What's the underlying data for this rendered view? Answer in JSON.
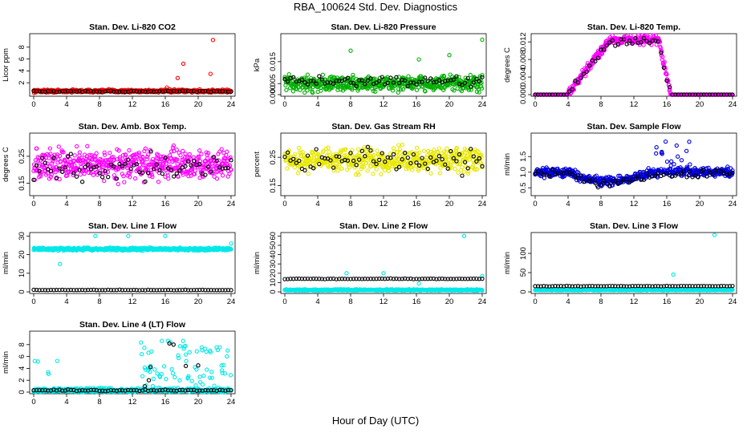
{
  "figure": {
    "title": "RBA_100624  Std. Dev. Diagnostics",
    "xlabel": "Hour of Day (UTC)"
  },
  "chart_data": [
    {
      "type": "scatter",
      "title": "Stan. Dev. Li-820 CO2",
      "ylabel": "Licor ppm",
      "xlim": [
        0,
        24
      ],
      "ylim": [
        0,
        10
      ],
      "x_ticks": [
        "0",
        "4",
        "8",
        "12",
        "16",
        "20",
        "24"
      ],
      "y_ticks": [
        "2",
        "4",
        "6",
        "8"
      ],
      "y_tick_values": [
        2,
        4,
        6,
        8
      ],
      "series": [
        {
          "color": "#ff0000",
          "baseline": 0.6,
          "spread": 0.2,
          "outliers": [
            [
              16.2,
              1.2
            ],
            [
              17.5,
              2.8
            ],
            [
              18.2,
              5.2
            ],
            [
              21.5,
              3.5
            ],
            [
              21.8,
              9.2
            ]
          ]
        },
        {
          "color": "#000000",
          "baseline": 0.55,
          "spread": 0.1,
          "sparse": true
        }
      ]
    },
    {
      "type": "scatter",
      "title": "Stan. Dev. Li-820 Pressure",
      "ylabel": "kPa",
      "xlim": [
        0,
        24
      ],
      "ylim": [
        0,
        0.027
      ],
      "x_ticks": [
        "0",
        "4",
        "8",
        "12",
        "16",
        "20",
        "24"
      ],
      "y_ticks": [
        "0.000",
        "0.005",
        "0.015"
      ],
      "y_tick_values": [
        0,
        0.005,
        0.015
      ],
      "series": [
        {
          "color": "#00b000",
          "baseline": 0.005,
          "spread": 0.003,
          "outliers": [
            [
              8,
              0.02
            ],
            [
              16.3,
              0.016
            ],
            [
              20,
              0.018
            ],
            [
              24,
              0.025
            ]
          ]
        },
        {
          "color": "#000000",
          "baseline": 0.006,
          "spread": 0.002,
          "sparse": true
        }
      ]
    },
    {
      "type": "scatter",
      "title": "Stan. Dev. Li-820 Temp.",
      "ylabel": "degrees C",
      "xlim": [
        0,
        24
      ],
      "ylim": [
        0,
        0.0135
      ],
      "x_ticks": [
        "0",
        "4",
        "8",
        "12",
        "16",
        "20",
        "24"
      ],
      "y_ticks": [
        "0.000",
        "0.004",
        "0.008",
        "0.012"
      ],
      "y_tick_values": [
        0,
        0.004,
        0.008,
        0.012
      ],
      "series": [
        {
          "color": "#ff00ff",
          "profile": "daytime-hump",
          "peak": 0.0125
        },
        {
          "color": "#000000",
          "profile": "daytime-hump",
          "peak": 0.012,
          "sparse": true
        }
      ]
    },
    {
      "type": "scatter",
      "title": "Stan. Dev. Amb. Box Temp.",
      "ylabel": "degrees C",
      "xlim": [
        0,
        24
      ],
      "ylim": [
        0.11,
        0.33
      ],
      "x_ticks": [
        "0",
        "4",
        "8",
        "12",
        "16",
        "20",
        "24"
      ],
      "y_ticks": [
        "0.15",
        "0.25"
      ],
      "y_tick_values": [
        0.15,
        0.25
      ],
      "series": [
        {
          "color": "#ff00ff",
          "baseline": 0.22,
          "spread": 0.045
        },
        {
          "color": "#000000",
          "baseline": 0.21,
          "spread": 0.04,
          "sparse": true
        }
      ]
    },
    {
      "type": "scatter",
      "title": "Stan. Dev. Gas Stream RH",
      "ylabel": "percent",
      "xlim": [
        0,
        24
      ],
      "ylim": [
        0.12,
        0.33
      ],
      "x_ticks": [
        "0",
        "4",
        "8",
        "12",
        "16",
        "20",
        "24"
      ],
      "y_ticks": [
        "0.15",
        "0.25"
      ],
      "y_tick_values": [
        0.15,
        0.25
      ],
      "series": [
        {
          "color": "#e8e800",
          "baseline": 0.24,
          "spread": 0.035
        },
        {
          "color": "#000000",
          "baseline": 0.24,
          "spread": 0.035,
          "sparse": true
        }
      ]
    },
    {
      "type": "scatter",
      "title": "Stan. Dev. Sample Flow",
      "ylabel": "ml/min",
      "xlim": [
        0,
        24
      ],
      "ylim": [
        0.3,
        2.2
      ],
      "x_ticks": [
        "0",
        "4",
        "8",
        "12",
        "16",
        "20",
        "24"
      ],
      "y_ticks": [
        "0.5",
        "1.0",
        "1.5"
      ],
      "y_tick_values": [
        0.5,
        1.0,
        1.5
      ],
      "series": [
        {
          "color": "#0000e0",
          "profile": "dip-midday",
          "baseline": 1.0
        },
        {
          "color": "#000000",
          "profile": "dip-midday",
          "baseline": 0.95,
          "sparse": true
        }
      ]
    },
    {
      "type": "scatter",
      "title": "Stan. Dev. Line 1 Flow",
      "ylabel": "ml/min",
      "xlim": [
        0,
        24
      ],
      "ylim": [
        0,
        31
      ],
      "x_ticks": [
        "0",
        "4",
        "8",
        "12",
        "16",
        "20",
        "24"
      ],
      "y_ticks": [
        "0",
        "10",
        "20",
        "30"
      ],
      "y_tick_values": [
        0,
        10,
        20,
        30
      ],
      "series": [
        {
          "color": "#00e8e8",
          "baseline": 23,
          "spread": 0.6,
          "outliers": [
            [
              3.2,
              15
            ],
            [
              7.5,
              30
            ],
            [
              11.5,
              30
            ],
            [
              16,
              30
            ],
            [
              24,
              26
            ]
          ]
        },
        {
          "color": "#000000",
          "baseline": 1,
          "spread": 0.1,
          "sparse": true
        }
      ]
    },
    {
      "type": "scatter",
      "title": "Stan. Dev. Line 2 Flow",
      "ylabel": "ml/min",
      "xlim": [
        0,
        24
      ],
      "ylim": [
        0,
        62
      ],
      "x_ticks": [
        "0",
        "4",
        "8",
        "12",
        "16",
        "20",
        "24"
      ],
      "y_ticks": [
        "0",
        "10",
        "20",
        "30",
        "40",
        "50",
        "60"
      ],
      "y_tick_values": [
        0,
        10,
        20,
        30,
        40,
        50,
        60
      ],
      "series": [
        {
          "color": "#00e8e8",
          "baseline": 2,
          "spread": 0.6,
          "outliers": [
            [
              7.5,
              20
            ],
            [
              12,
              20
            ],
            [
              16.3,
              9
            ],
            [
              21.8,
              60
            ],
            [
              24,
              17
            ]
          ]
        },
        {
          "color": "#000000",
          "baseline": 14,
          "spread": 0.3,
          "sparse": true
        }
      ]
    },
    {
      "type": "scatter",
      "title": "Stan. Dev. Line 3 Flow",
      "ylabel": "ml/min",
      "xlim": [
        0,
        24
      ],
      "ylim": [
        0,
        150
      ],
      "x_ticks": [
        "0",
        "4",
        "8",
        "12",
        "16",
        "20",
        "24"
      ],
      "y_ticks": [
        "0",
        "50",
        "100"
      ],
      "y_tick_values": [
        0,
        50,
        100
      ],
      "series": [
        {
          "color": "#00e8e8",
          "baseline": 5,
          "spread": 1,
          "outliers": [
            [
              16.8,
              45
            ],
            [
              21.8,
              148
            ]
          ]
        },
        {
          "color": "#000000",
          "baseline": 15,
          "spread": 0.5,
          "sparse": true
        }
      ]
    },
    {
      "type": "scatter",
      "title": "Stan. Dev. Line 4 (LT) Flow",
      "ylabel": "ml/min",
      "xlim": [
        0,
        24
      ],
      "ylim": [
        0,
        10
      ],
      "x_ticks": [
        "0",
        "4",
        "8",
        "12",
        "16",
        "20",
        "24"
      ],
      "y_ticks": [
        "0",
        "2",
        "4",
        "6",
        "8"
      ],
      "y_tick_values": [
        0,
        2,
        4,
        6,
        8
      ],
      "series": [
        {
          "color": "#00e8e8",
          "baseline": 0.3,
          "spread": 0.3,
          "profile": "afternoon-scatter"
        },
        {
          "color": "#000000",
          "baseline": 0.3,
          "spread": 0.1,
          "sparse": true,
          "outliers": [
            [
              14.2,
              4.2
            ],
            [
              16.5,
              8.2
            ],
            [
              17.0,
              8.0
            ],
            [
              18.5,
              4.4
            ],
            [
              20.0,
              4.5
            ],
            [
              13.5,
              1.0
            ],
            [
              14.0,
              2.0
            ]
          ]
        }
      ]
    }
  ]
}
